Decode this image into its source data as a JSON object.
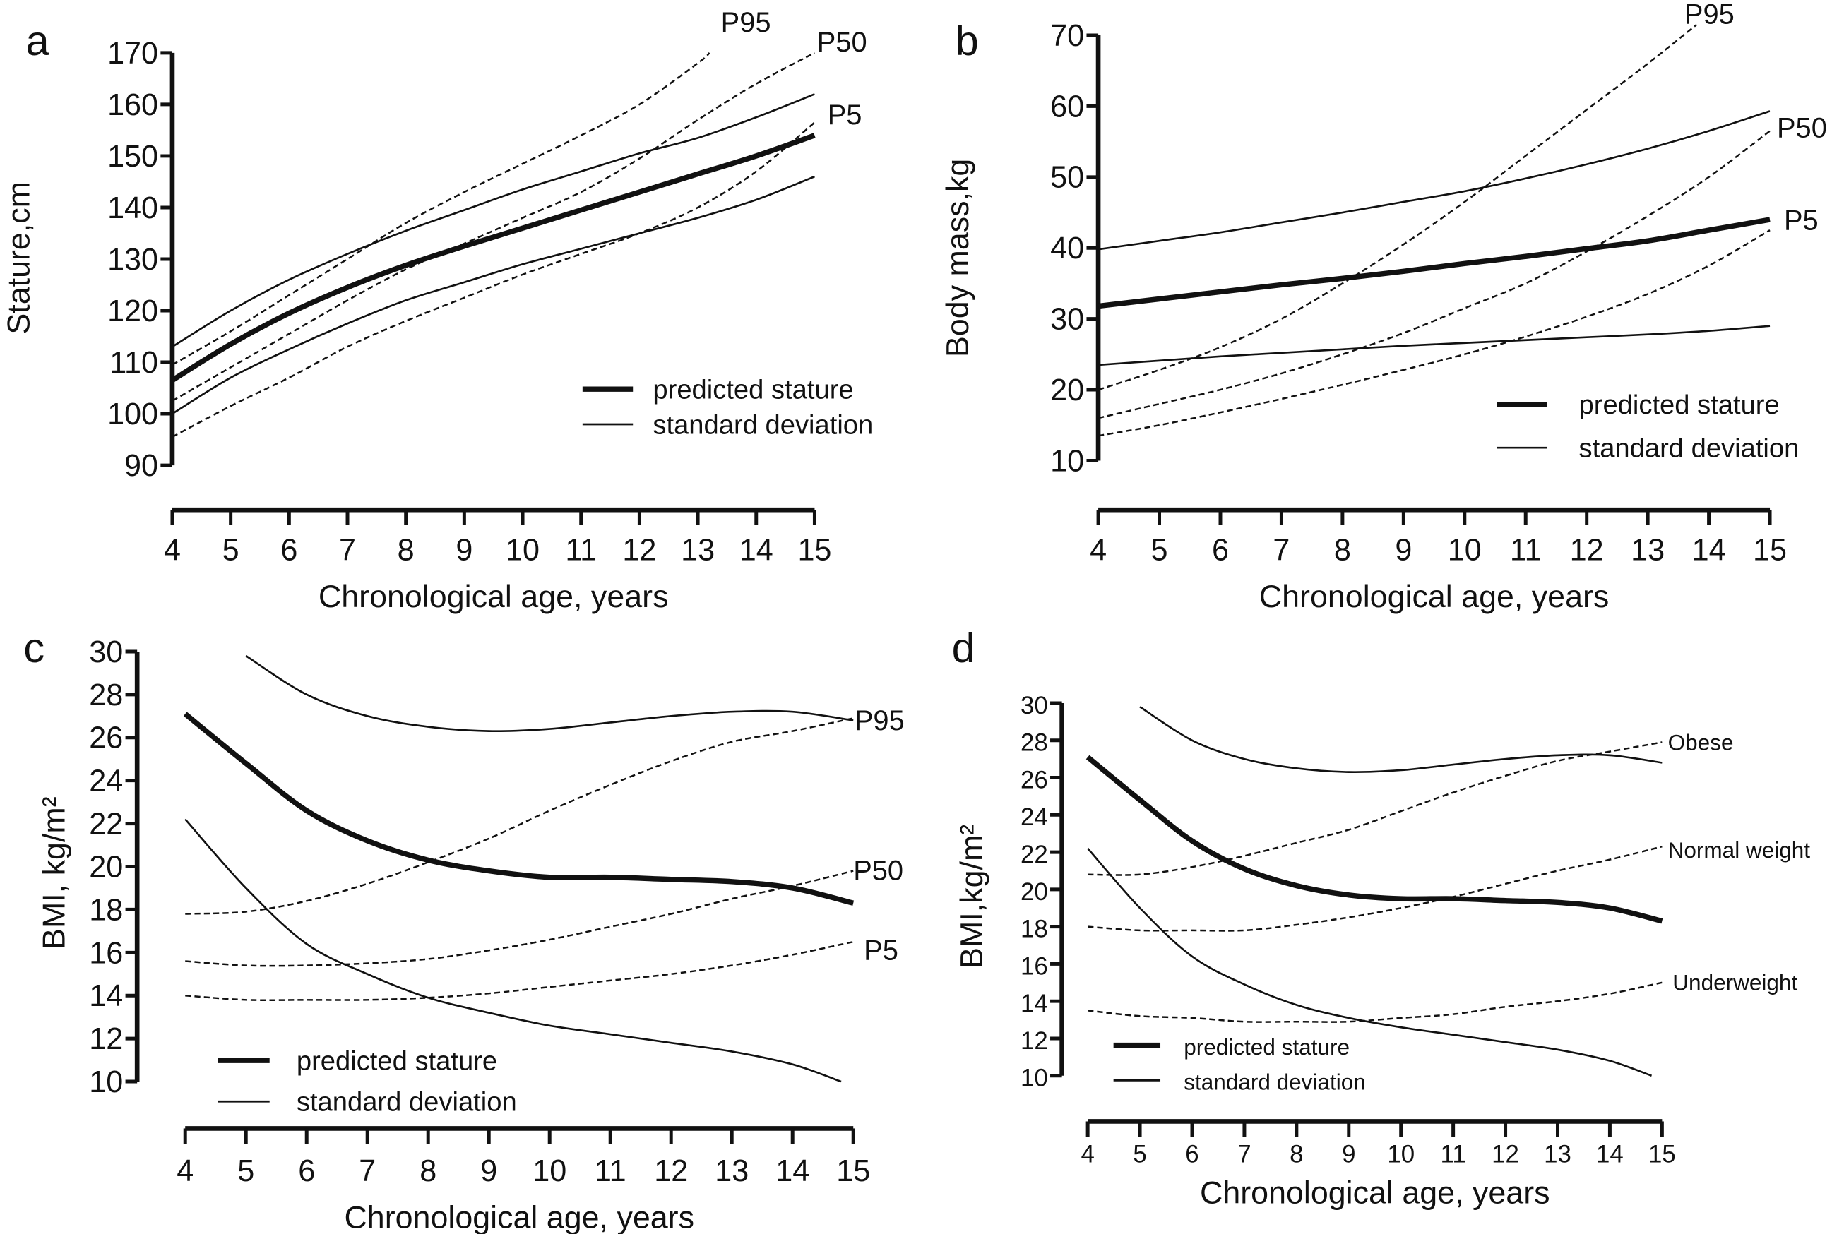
{
  "chart_data": [
    {
      "type": "line",
      "panel_letter": "a",
      "xlabel": "Chronological age, years",
      "ylabel": "Stature,cm",
      "xlim": [
        4,
        15
      ],
      "ylim": [
        90,
        170
      ],
      "xticks": [
        "4",
        "5",
        "6",
        "7",
        "8",
        "9",
        "10",
        "11",
        "12",
        "13",
        "14",
        "15"
      ],
      "yticks": [
        "90",
        "100",
        "110",
        "120",
        "130",
        "140",
        "150",
        "160",
        "170"
      ],
      "legend": {
        "placement": "bottom-right",
        "entries": [
          "predicted stature",
          "standard deviation"
        ]
      },
      "series": [
        {
          "name": "predicted stature",
          "style": "thick",
          "x": [
            4,
            5,
            6,
            7,
            8,
            9,
            10,
            11,
            12,
            13,
            14,
            15
          ],
          "y": [
            106.5,
            113.5,
            119.5,
            124.5,
            128.8,
            132.5,
            136,
            139.5,
            143,
            146.5,
            150,
            154
          ]
        },
        {
          "name": "standard deviation",
          "style": "thin",
          "x": [
            4,
            5,
            6,
            7,
            8,
            9,
            10,
            11,
            12,
            13,
            14,
            15
          ],
          "y": [
            113,
            120,
            126,
            131,
            135.5,
            139.5,
            143.5,
            147,
            150.5,
            153.5,
            157.5,
            162
          ]
        },
        {
          "name": "standard deviation",
          "style": "thin",
          "x": [
            4,
            5,
            6,
            7,
            8,
            9,
            10,
            11,
            12,
            13,
            14,
            15
          ],
          "y": [
            100,
            107,
            112.5,
            117.5,
            122,
            125.5,
            129,
            132,
            135,
            138,
            141.5,
            146
          ]
        },
        {
          "name": "P95",
          "style": "dashed",
          "x": [
            4,
            5,
            6,
            7,
            8,
            9,
            10,
            11,
            12,
            13,
            13.2
          ],
          "y": [
            109.5,
            116,
            123,
            130,
            137,
            143,
            148.5,
            154,
            160,
            168,
            170
          ]
        },
        {
          "name": "P50",
          "style": "dashed",
          "x": [
            4,
            5,
            6,
            7,
            8,
            9,
            10,
            11,
            12,
            13,
            14,
            15
          ],
          "y": [
            102.5,
            109,
            115.5,
            122,
            128,
            133,
            138,
            143,
            149.5,
            157,
            164,
            170
          ]
        },
        {
          "name": "P5",
          "style": "dashed",
          "x": [
            4,
            5,
            6,
            7,
            8,
            9,
            10,
            11,
            12,
            13,
            14,
            15
          ],
          "y": [
            95.5,
            101.5,
            107,
            113,
            118,
            122.5,
            127,
            131,
            135,
            140,
            147,
            156.5
          ]
        }
      ]
    },
    {
      "type": "line",
      "panel_letter": "b",
      "xlabel": "Chronological age, years",
      "ylabel": "Body mass,kg",
      "xlim": [
        4,
        15
      ],
      "ylim": [
        10,
        70
      ],
      "xticks": [
        "4",
        "5",
        "6",
        "7",
        "8",
        "9",
        "10",
        "11",
        "12",
        "13",
        "14",
        "15"
      ],
      "yticks": [
        "10",
        "20",
        "30",
        "40",
        "50",
        "60",
        "70"
      ],
      "legend": {
        "placement": "bottom-right",
        "entries": [
          "predicted stature",
          "standard deviation"
        ]
      },
      "series": [
        {
          "name": "predicted stature",
          "style": "thick",
          "x": [
            4,
            5,
            6,
            7,
            8,
            9,
            10,
            11,
            12,
            13,
            14,
            15
          ],
          "y": [
            31.8,
            32.8,
            33.8,
            34.8,
            35.7,
            36.7,
            37.8,
            38.8,
            39.9,
            41,
            42.5,
            44
          ]
        },
        {
          "name": "standard deviation",
          "style": "thin",
          "x": [
            4,
            5,
            6,
            7,
            8,
            9,
            10,
            11,
            12,
            13,
            14,
            15
          ],
          "y": [
            39.8,
            41,
            42.2,
            43.6,
            45,
            46.5,
            48,
            49.8,
            51.8,
            54,
            56.5,
            59.3
          ]
        },
        {
          "name": "standard deviation",
          "style": "thin",
          "x": [
            4,
            5,
            6,
            7,
            8,
            9,
            10,
            11,
            12,
            13,
            14,
            15
          ],
          "y": [
            23.5,
            24.1,
            24.7,
            25.2,
            25.7,
            26.2,
            26.6,
            27,
            27.4,
            27.8,
            28.3,
            29
          ]
        },
        {
          "name": "P95",
          "style": "dashed",
          "x": [
            4,
            5,
            6,
            7,
            8,
            9,
            10,
            11,
            12,
            13,
            13.8
          ],
          "y": [
            20,
            22.8,
            26,
            30,
            35,
            40.5,
            46.5,
            53,
            59.5,
            66,
            71.5
          ]
        },
        {
          "name": "P50",
          "style": "dashed",
          "x": [
            4,
            5,
            6,
            7,
            8,
            9,
            10,
            11,
            12,
            13,
            14,
            15
          ],
          "y": [
            16,
            18,
            20,
            22.3,
            25,
            28,
            31.5,
            35,
            39.5,
            44.5,
            50,
            56.5
          ]
        },
        {
          "name": "P5",
          "style": "dashed",
          "x": [
            4,
            5,
            6,
            7,
            8,
            9,
            10,
            11,
            12,
            13,
            14,
            15
          ],
          "y": [
            13.5,
            15,
            16.8,
            18.7,
            20.7,
            22.8,
            25,
            27.5,
            30.3,
            33.5,
            37.5,
            42.5
          ]
        }
      ]
    },
    {
      "type": "line",
      "panel_letter": "c",
      "xlabel": "Chronological age, years",
      "ylabel": "BMI, kg/m²",
      "xlim": [
        4,
        15
      ],
      "ylim": [
        10,
        30
      ],
      "xticks": [
        "4",
        "5",
        "6",
        "7",
        "8",
        "9",
        "10",
        "11",
        "12",
        "13",
        "14",
        "15"
      ],
      "yticks": [
        "10",
        "12",
        "14",
        "16",
        "18",
        "20",
        "22",
        "24",
        "26",
        "28",
        "30"
      ],
      "legend": {
        "placement": "bottom-left",
        "entries": [
          "predicted stature",
          "standard deviation"
        ]
      },
      "series": [
        {
          "name": "predicted stature",
          "style": "thick",
          "x": [
            4,
            5,
            6,
            7,
            8,
            9,
            10,
            11,
            12,
            13,
            14,
            15
          ],
          "y": [
            27.1,
            24.8,
            22.6,
            21.2,
            20.3,
            19.8,
            19.5,
            19.5,
            19.4,
            19.3,
            19,
            18.3
          ]
        },
        {
          "name": "standard deviation",
          "style": "thin",
          "x": [
            5,
            6,
            7,
            8,
            9,
            10,
            11,
            12,
            13,
            14,
            15
          ],
          "y": [
            29.8,
            28,
            27,
            26.5,
            26.3,
            26.4,
            26.7,
            27,
            27.2,
            27.2,
            26.8
          ]
        },
        {
          "name": "standard deviation",
          "style": "thin",
          "x": [
            4,
            5,
            6,
            7,
            8,
            9,
            10,
            11,
            12,
            13,
            14,
            14.8
          ],
          "y": [
            22.2,
            19,
            16.4,
            15,
            13.9,
            13.2,
            12.6,
            12.2,
            11.8,
            11.4,
            10.8,
            10
          ]
        },
        {
          "name": "P95",
          "style": "dashed",
          "x": [
            4,
            5,
            6,
            7,
            8,
            9,
            10,
            11,
            12,
            13,
            14,
            15
          ],
          "y": [
            17.8,
            17.9,
            18.4,
            19.2,
            20.2,
            21.3,
            22.6,
            23.8,
            24.9,
            25.8,
            26.3,
            26.9
          ]
        },
        {
          "name": "P50",
          "style": "dashed",
          "x": [
            4,
            5,
            6,
            7,
            8,
            9,
            10,
            11,
            12,
            13,
            14,
            15
          ],
          "y": [
            15.6,
            15.4,
            15.4,
            15.5,
            15.7,
            16.1,
            16.6,
            17.2,
            17.8,
            18.5,
            19.1,
            19.8
          ]
        },
        {
          "name": "P5",
          "style": "dashed",
          "x": [
            4,
            5,
            6,
            7,
            8,
            9,
            10,
            11,
            12,
            13,
            14,
            15
          ],
          "y": [
            14,
            13.8,
            13.8,
            13.8,
            13.9,
            14.1,
            14.4,
            14.7,
            15,
            15.4,
            15.9,
            16.5
          ]
        }
      ]
    },
    {
      "type": "line",
      "panel_letter": "d",
      "xlabel": "Chronological age, years",
      "ylabel": "BMI,kg/m²",
      "xlim": [
        4,
        15
      ],
      "ylim": [
        10,
        30
      ],
      "xticks": [
        "4",
        "5",
        "6",
        "7",
        "8",
        "9",
        "10",
        "11",
        "12",
        "13",
        "14",
        "15"
      ],
      "yticks": [
        "10",
        "12",
        "14",
        "16",
        "18",
        "20",
        "22",
        "24",
        "26",
        "28",
        "30"
      ],
      "legend": {
        "placement": "bottom-left",
        "entries": [
          "predicted stature",
          "standard deviation"
        ]
      },
      "series": [
        {
          "name": "predicted stature",
          "style": "thick",
          "x": [
            4,
            5,
            6,
            7,
            8,
            9,
            10,
            11,
            12,
            13,
            14,
            15
          ],
          "y": [
            27.1,
            24.8,
            22.6,
            21.1,
            20.2,
            19.7,
            19.5,
            19.5,
            19.4,
            19.3,
            19,
            18.3
          ]
        },
        {
          "name": "standard deviation",
          "style": "thin",
          "x": [
            5,
            6,
            7,
            8,
            9,
            10,
            11,
            12,
            13,
            14,
            15
          ],
          "y": [
            29.8,
            28,
            27,
            26.5,
            26.3,
            26.4,
            26.7,
            27,
            27.2,
            27.2,
            26.8
          ]
        },
        {
          "name": "standard deviation",
          "style": "thin",
          "x": [
            4,
            5,
            6,
            7,
            8,
            9,
            10,
            11,
            12,
            13,
            14,
            14.8
          ],
          "y": [
            22.2,
            19,
            16.4,
            14.9,
            13.8,
            13.1,
            12.6,
            12.2,
            11.8,
            11.4,
            10.8,
            10
          ]
        },
        {
          "name": "Obese",
          "style": "dashed",
          "x": [
            4,
            5,
            6,
            7,
            8,
            9,
            10,
            11,
            12,
            13,
            14,
            15
          ],
          "y": [
            20.8,
            20.8,
            21.2,
            21.8,
            22.5,
            23.2,
            24.2,
            25.2,
            26.1,
            26.9,
            27.4,
            27.9
          ]
        },
        {
          "name": "Normal weight",
          "style": "dashed",
          "x": [
            4,
            5,
            6,
            7,
            8,
            9,
            10,
            11,
            12,
            13,
            14,
            15
          ],
          "y": [
            18,
            17.8,
            17.8,
            17.8,
            18.1,
            18.5,
            19,
            19.6,
            20.3,
            21,
            21.6,
            22.3
          ]
        },
        {
          "name": "Underweight",
          "style": "dashed",
          "x": [
            4,
            5,
            6,
            7,
            8,
            9,
            10,
            11,
            12,
            13,
            14,
            15
          ],
          "y": [
            13.5,
            13.2,
            13.1,
            12.9,
            12.9,
            12.9,
            13.1,
            13.3,
            13.7,
            14,
            14.4,
            15
          ]
        }
      ]
    }
  ]
}
